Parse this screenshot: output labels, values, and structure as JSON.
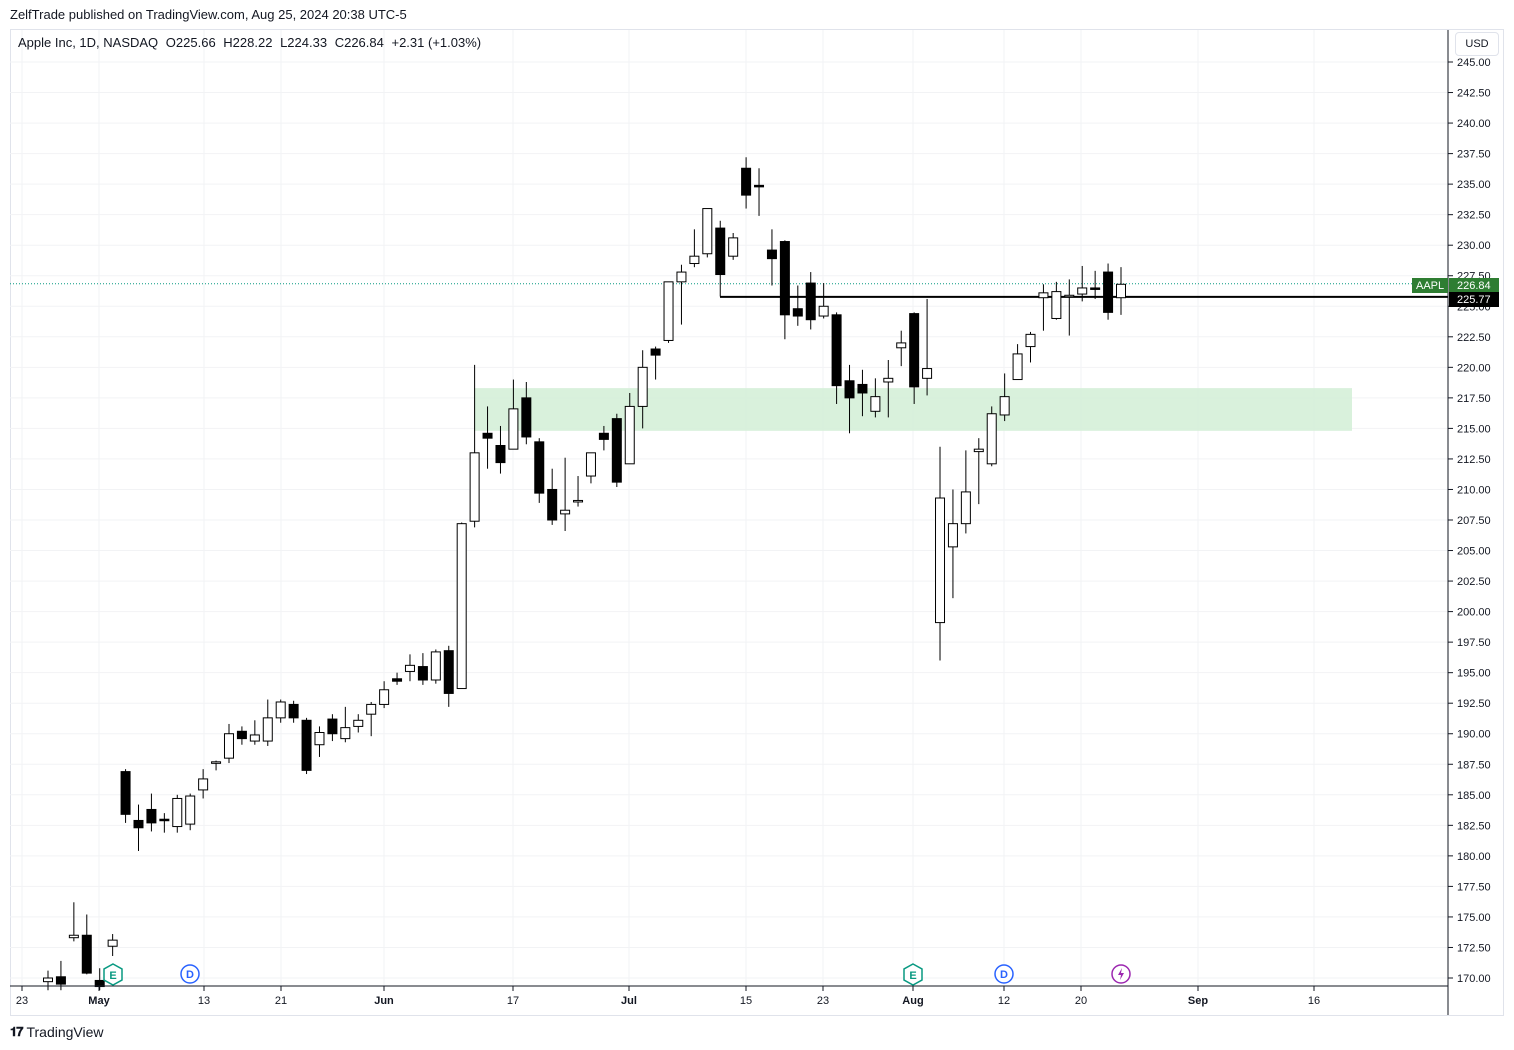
{
  "header": {
    "published": "ZelfTrade published on TradingView.com, Aug 25, 2024 20:38 UTC-5"
  },
  "legend": {
    "symbol": "Apple Inc, 1D, NASDAQ",
    "open": "O225.66",
    "high": "H228.22",
    "low": "L224.33",
    "close": "C226.84",
    "change": "+2.31 (+1.03%)"
  },
  "currency": "USD",
  "footer": {
    "brand": "TradingView"
  },
  "markers": {
    "earnings": "E",
    "dividend": "D"
  },
  "chart_data": {
    "type": "candlestick",
    "ylim": [
      169.0,
      246.5
    ],
    "y_ticks": [
      "245.00",
      "242.50",
      "240.00",
      "237.50",
      "235.00",
      "232.50",
      "230.00",
      "227.50",
      "225.00",
      "222.50",
      "220.00",
      "217.50",
      "215.00",
      "212.50",
      "210.00",
      "207.50",
      "205.00",
      "202.50",
      "200.00",
      "197.50",
      "195.00",
      "192.50",
      "190.00",
      "187.50",
      "185.00",
      "182.50",
      "180.00",
      "177.50",
      "175.00",
      "172.50",
      "170.00"
    ],
    "x_ticks": [
      "23",
      "May",
      "13",
      "21",
      "Jun",
      "17",
      "Jul",
      "15",
      "23",
      "Aug",
      "12",
      "20",
      "Sep",
      "16"
    ],
    "last_price": {
      "symbol": "AAPL",
      "value": "226.84"
    },
    "horizontal_line": {
      "value": "225.77"
    },
    "zone": {
      "low": 214.8,
      "high": 218.3
    },
    "candles": [
      {
        "o": 169.7,
        "h": 170.6,
        "l": 169.0,
        "c": 170.0
      },
      {
        "o": 170.1,
        "h": 171.4,
        "l": 169.0,
        "c": 169.5
      },
      {
        "o": 173.3,
        "h": 176.2,
        "l": 173.0,
        "c": 173.5
      },
      {
        "o": 173.5,
        "h": 175.2,
        "l": 170.3,
        "c": 170.4
      },
      {
        "o": 169.8,
        "h": 170.8,
        "l": 169.0,
        "c": 169.3
      },
      {
        "o": 172.6,
        "h": 173.6,
        "l": 171.8,
        "c": 173.1
      },
      {
        "o": 186.9,
        "h": 187.1,
        "l": 182.7,
        "c": 183.4
      },
      {
        "o": 182.9,
        "h": 184.2,
        "l": 180.4,
        "c": 182.3
      },
      {
        "o": 183.8,
        "h": 185.1,
        "l": 182.0,
        "c": 182.7
      },
      {
        "o": 183.0,
        "h": 183.5,
        "l": 181.9,
        "c": 182.9
      },
      {
        "o": 182.4,
        "h": 185.0,
        "l": 181.9,
        "c": 184.7
      },
      {
        "o": 182.6,
        "h": 185.1,
        "l": 182.1,
        "c": 184.9
      },
      {
        "o": 185.4,
        "h": 187.1,
        "l": 184.7,
        "c": 186.3
      },
      {
        "o": 187.6,
        "h": 187.8,
        "l": 187.0,
        "c": 187.7
      },
      {
        "o": 188.0,
        "h": 190.8,
        "l": 187.6,
        "c": 190.0
      },
      {
        "o": 190.2,
        "h": 190.6,
        "l": 189.1,
        "c": 189.6
      },
      {
        "o": 189.4,
        "h": 191.1,
        "l": 189.1,
        "c": 189.9
      },
      {
        "o": 189.4,
        "h": 192.8,
        "l": 189.0,
        "c": 191.3
      },
      {
        "o": 191.3,
        "h": 192.8,
        "l": 190.9,
        "c": 192.6
      },
      {
        "o": 192.4,
        "h": 192.7,
        "l": 190.9,
        "c": 191.3
      },
      {
        "o": 191.1,
        "h": 191.3,
        "l": 186.7,
        "c": 187.0
      },
      {
        "o": 189.1,
        "h": 190.6,
        "l": 188.1,
        "c": 190.1
      },
      {
        "o": 191.2,
        "h": 191.6,
        "l": 189.4,
        "c": 190.0
      },
      {
        "o": 189.6,
        "h": 192.2,
        "l": 189.3,
        "c": 190.5
      },
      {
        "o": 190.6,
        "h": 191.6,
        "l": 190.1,
        "c": 191.1
      },
      {
        "o": 191.6,
        "h": 192.6,
        "l": 189.8,
        "c": 192.4
      },
      {
        "o": 192.4,
        "h": 194.3,
        "l": 192.1,
        "c": 193.6
      },
      {
        "o": 194.5,
        "h": 195.0,
        "l": 194.0,
        "c": 194.3
      },
      {
        "o": 195.1,
        "h": 196.5,
        "l": 194.3,
        "c": 195.6
      },
      {
        "o": 195.5,
        "h": 196.6,
        "l": 194.0,
        "c": 194.4
      },
      {
        "o": 194.4,
        "h": 196.9,
        "l": 194.1,
        "c": 196.7
      },
      {
        "o": 196.8,
        "h": 197.2,
        "l": 192.2,
        "c": 193.3
      },
      {
        "o": 193.7,
        "h": 207.3,
        "l": 193.7,
        "c": 207.2
      },
      {
        "o": 207.4,
        "h": 220.2,
        "l": 206.9,
        "c": 213.0
      },
      {
        "o": 214.6,
        "h": 216.8,
        "l": 211.7,
        "c": 214.2
      },
      {
        "o": 213.6,
        "h": 215.2,
        "l": 211.3,
        "c": 212.2
      },
      {
        "o": 213.3,
        "h": 219.0,
        "l": 213.3,
        "c": 216.6
      },
      {
        "o": 217.5,
        "h": 218.8,
        "l": 213.7,
        "c": 214.3
      },
      {
        "o": 213.9,
        "h": 214.2,
        "l": 208.9,
        "c": 209.7
      },
      {
        "o": 210.0,
        "h": 211.7,
        "l": 207.1,
        "c": 207.5
      },
      {
        "o": 208.0,
        "h": 212.6,
        "l": 206.6,
        "c": 208.3
      },
      {
        "o": 209.1,
        "h": 211.1,
        "l": 208.6,
        "c": 209.1
      },
      {
        "o": 211.1,
        "h": 213.0,
        "l": 210.5,
        "c": 213.0
      },
      {
        "o": 214.6,
        "h": 215.2,
        "l": 213.2,
        "c": 214.1
      },
      {
        "o": 215.8,
        "h": 216.2,
        "l": 210.2,
        "c": 210.6
      },
      {
        "o": 212.1,
        "h": 217.9,
        "l": 212.1,
        "c": 216.8
      },
      {
        "o": 216.8,
        "h": 221.4,
        "l": 215.0,
        "c": 220.0
      },
      {
        "o": 221.5,
        "h": 221.7,
        "l": 219.0,
        "c": 221.0
      },
      {
        "o": 222.2,
        "h": 227.0,
        "l": 222.0,
        "c": 227.0
      },
      {
        "o": 227.0,
        "h": 228.4,
        "l": 223.5,
        "c": 227.8
      },
      {
        "o": 228.5,
        "h": 231.3,
        "l": 228.2,
        "c": 229.1
      },
      {
        "o": 229.3,
        "h": 233.0,
        "l": 229.0,
        "c": 233.0
      },
      {
        "o": 231.4,
        "h": 232.0,
        "l": 225.8,
        "c": 227.6
      },
      {
        "o": 229.1,
        "h": 231.0,
        "l": 228.8,
        "c": 230.6
      },
      {
        "o": 236.3,
        "h": 237.2,
        "l": 233.0,
        "c": 234.1
      },
      {
        "o": 234.9,
        "h": 236.3,
        "l": 232.4,
        "c": 234.8
      },
      {
        "o": 229.6,
        "h": 231.3,
        "l": 226.7,
        "c": 228.9
      },
      {
        "o": 230.3,
        "h": 230.4,
        "l": 222.3,
        "c": 224.3
      },
      {
        "o": 224.8,
        "h": 226.7,
        "l": 223.4,
        "c": 224.2
      },
      {
        "o": 226.9,
        "h": 227.8,
        "l": 223.1,
        "c": 223.9
      },
      {
        "o": 224.2,
        "h": 226.9,
        "l": 224.0,
        "c": 225.0
      },
      {
        "o": 224.3,
        "h": 224.5,
        "l": 217.0,
        "c": 218.5
      },
      {
        "o": 218.9,
        "h": 220.2,
        "l": 214.6,
        "c": 217.5
      },
      {
        "o": 218.6,
        "h": 219.8,
        "l": 216.0,
        "c": 217.9
      },
      {
        "o": 216.4,
        "h": 219.1,
        "l": 215.9,
        "c": 217.6
      },
      {
        "o": 218.8,
        "h": 220.6,
        "l": 215.9,
        "c": 219.1
      },
      {
        "o": 221.6,
        "h": 223.0,
        "l": 220.1,
        "c": 222.0
      },
      {
        "o": 224.4,
        "h": 224.5,
        "l": 217.0,
        "c": 218.4
      },
      {
        "o": 219.1,
        "h": 225.6,
        "l": 217.7,
        "c": 219.9
      },
      {
        "o": 199.1,
        "h": 213.5,
        "l": 196.0,
        "c": 209.3
      },
      {
        "o": 205.3,
        "h": 210.0,
        "l": 201.1,
        "c": 207.2
      },
      {
        "o": 207.2,
        "h": 213.2,
        "l": 206.4,
        "c": 209.8
      },
      {
        "o": 213.1,
        "h": 214.2,
        "l": 208.8,
        "c": 213.3
      },
      {
        "o": 212.1,
        "h": 216.8,
        "l": 211.9,
        "c": 216.2
      },
      {
        "o": 216.1,
        "h": 219.5,
        "l": 215.6,
        "c": 217.6
      },
      {
        "o": 219.0,
        "h": 221.9,
        "l": 219.0,
        "c": 221.1
      },
      {
        "o": 221.7,
        "h": 222.9,
        "l": 220.4,
        "c": 222.7
      },
      {
        "o": 225.7,
        "h": 226.8,
        "l": 223.0,
        "c": 226.1
      },
      {
        "o": 224.0,
        "h": 227.0,
        "l": 223.9,
        "c": 226.2
      },
      {
        "o": 225.8,
        "h": 227.2,
        "l": 222.6,
        "c": 225.9
      },
      {
        "o": 226.0,
        "h": 228.3,
        "l": 225.4,
        "c": 226.5
      },
      {
        "o": 226.5,
        "h": 227.9,
        "l": 225.6,
        "c": 226.4
      },
      {
        "o": 227.8,
        "h": 228.5,
        "l": 223.9,
        "c": 224.5
      },
      {
        "o": 225.7,
        "h": 228.2,
        "l": 224.3,
        "c": 226.8
      }
    ]
  }
}
